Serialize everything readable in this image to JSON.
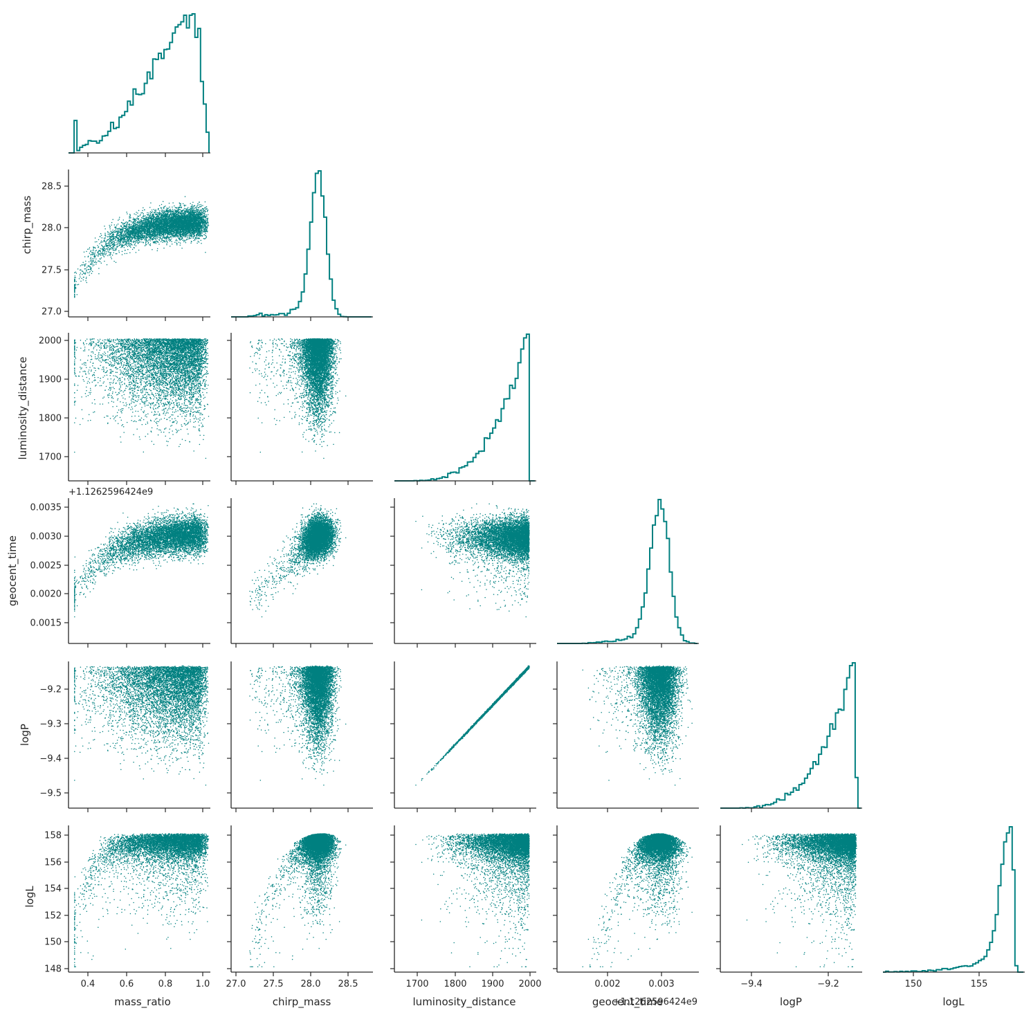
{
  "chart_data": {
    "type": "scatter",
    "layout": "corner pair plot (lower triangle scatter, diagonal step histograms)",
    "color": "#008080",
    "axis_line_color": "#262626",
    "grid": false,
    "variables": [
      "mass_ratio",
      "chirp_mass",
      "luminosity_distance",
      "geocent_time",
      "logP",
      "logL"
    ],
    "axis_labels": {
      "mass_ratio": "mass_ratio",
      "chirp_mass": "chirp_mass",
      "luminosity_distance": "luminosity_distance",
      "geocent_time": "geocent_time",
      "logP": "logP",
      "logL": "logL"
    },
    "x_ticks": {
      "mass_ratio": [
        "0.4",
        "0.6",
        "0.8",
        "1.0"
      ],
      "chirp_mass": [
        "27.0",
        "27.5",
        "28.0",
        "28.5"
      ],
      "luminosity_distance": [
        "1700",
        "1800",
        "1900",
        "2000"
      ],
      "geocent_time": [
        "0.002",
        "0.003"
      ],
      "logP": [
        "−9.4",
        "−9.2"
      ],
      "logL": [
        "150",
        "155"
      ]
    },
    "y_ticks": {
      "chirp_mass": [
        "28.5",
        "28.0",
        "27.5",
        "27.0"
      ],
      "luminosity_distance": [
        "2000",
        "1900",
        "1800",
        "1700"
      ],
      "geocent_time": [
        "0.0035",
        "0.0030",
        "0.0025",
        "0.0020",
        "0.0015"
      ],
      "logP": [
        "−9.2",
        "−9.3",
        "−9.4",
        "−9.5"
      ],
      "logL": [
        "158",
        "156",
        "154",
        "152",
        "150",
        "148"
      ]
    },
    "offset_labels": {
      "geocent_time_y": "+1.1262596424e9",
      "geocent_time_x": "+1.1262596424e9"
    },
    "ranges": {
      "mass_ratio": [
        0.31,
        1.0
      ],
      "chirp_mass": [
        26.93,
        28.66
      ],
      "luminosity_distance": [
        1643,
        2015
      ],
      "geocent_time": [
        0.00109,
        0.00365
      ],
      "logP": [
        -9.54,
        -9.13
      ],
      "logL": [
        147.8,
        158.7
      ]
    },
    "sample_count_approx": 10000,
    "relations": {
      "logP_vs_luminosity_distance": "tight linear, (1680, -9.50) to (2000, -9.145)",
      "geocent_time_vs_mass_ratio": "rising, saturating near 0.003",
      "logL_max": 158.1
    }
  }
}
